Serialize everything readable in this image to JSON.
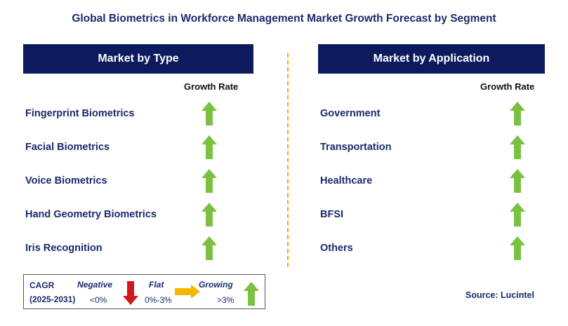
{
  "title": "Global Biometrics in Workforce Management Market Growth Forecast by Segment",
  "left_panel": {
    "header": "Market by Type",
    "growth_rate_label": "Growth Rate",
    "rows": [
      {
        "label": "Fingerprint Biometrics",
        "trend": "growing"
      },
      {
        "label": "Facial Biometrics",
        "trend": "growing"
      },
      {
        "label": "Voice Biometrics",
        "trend": "growing"
      },
      {
        "label": "Hand Geometry Biometrics",
        "trend": "growing"
      },
      {
        "label": "Iris Recognition",
        "trend": "growing"
      }
    ]
  },
  "right_panel": {
    "header": "Market by Application",
    "growth_rate_label": "Growth Rate",
    "rows": [
      {
        "label": "Government",
        "trend": "growing"
      },
      {
        "label": "Transportation",
        "trend": "growing"
      },
      {
        "label": "Healthcare",
        "trend": "growing"
      },
      {
        "label": "BFSI",
        "trend": "growing"
      },
      {
        "label": "Others",
        "trend": "growing"
      }
    ]
  },
  "legend": {
    "cagr_label": "CAGR",
    "period": "(2025-2031)",
    "negative_label": "Negative",
    "negative_value": "<0%",
    "flat_label": "Flat",
    "flat_value": "0%-3%",
    "growing_label": "Growing",
    "growing_value": ">3%"
  },
  "source": "Source: Lucintel",
  "colors": {
    "header_bg": "#0d1b5e",
    "text": "#1a2a6c",
    "growing": "#7ac142",
    "negative": "#d0191b",
    "flat": "#f7b500",
    "divider": "#f5a800"
  }
}
